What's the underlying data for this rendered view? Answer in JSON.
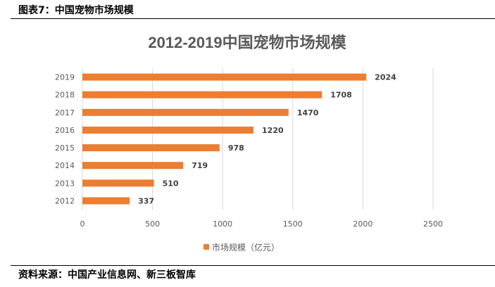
{
  "caption": "图表7：中国宠物市场规模",
  "source": "资料来源：中国产业信息网、新三板智库",
  "chart_data": {
    "type": "bar",
    "orientation": "horizontal",
    "title": "2012-2019中国宠物市场规模",
    "categories": [
      "2012",
      "2013",
      "2014",
      "2015",
      "2016",
      "2017",
      "2018",
      "2019"
    ],
    "series": [
      {
        "name": "市场规模（亿元）",
        "values": [
          337,
          510,
          719,
          978,
          1220,
          1470,
          1708,
          2024
        ]
      }
    ],
    "xlim": [
      0,
      2500
    ],
    "xticks": [
      0,
      500,
      1000,
      1500,
      2000,
      2500
    ],
    "grid": "vertical",
    "legend": "bottom",
    "color": "#ed7d31"
  }
}
